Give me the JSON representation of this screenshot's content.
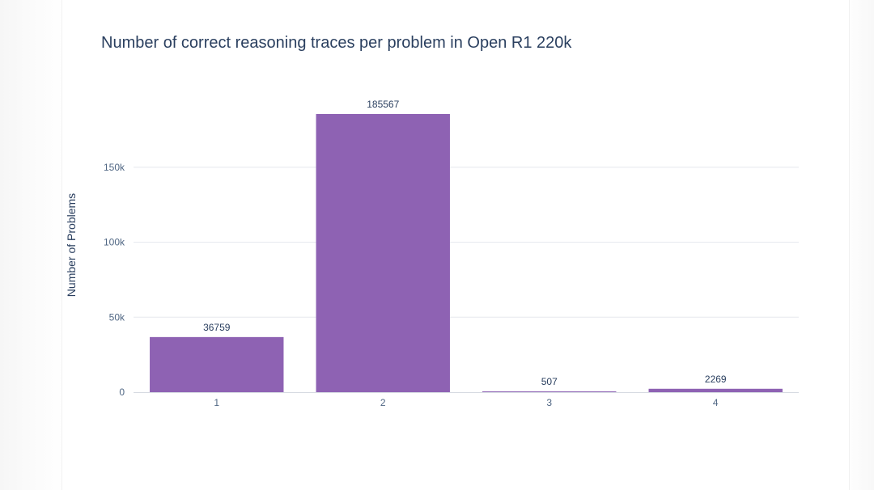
{
  "chart_data": {
    "type": "bar",
    "title": "Number of correct reasoning traces per problem in Open R1 220k",
    "xlabel": "",
    "ylabel": "Number of Problems",
    "categories": [
      "1",
      "2",
      "3",
      "4"
    ],
    "values": [
      36759,
      185567,
      507,
      2269
    ],
    "data_labels": [
      "36759",
      "185567",
      "507",
      "2269"
    ],
    "ylim": [
      0,
      185567
    ],
    "yticks": [
      {
        "value": 0,
        "label": "0"
      },
      {
        "value": 50000,
        "label": "50k"
      },
      {
        "value": 100000,
        "label": "100k"
      },
      {
        "value": 150000,
        "label": "150k"
      }
    ],
    "grid": true,
    "legend": "none",
    "colors": {
      "bar": "#8e62b3",
      "grid": "#e5e8ee",
      "zeroline": "#d6dae2",
      "text": "#2a3f5f",
      "ticktext": "#506784"
    }
  }
}
